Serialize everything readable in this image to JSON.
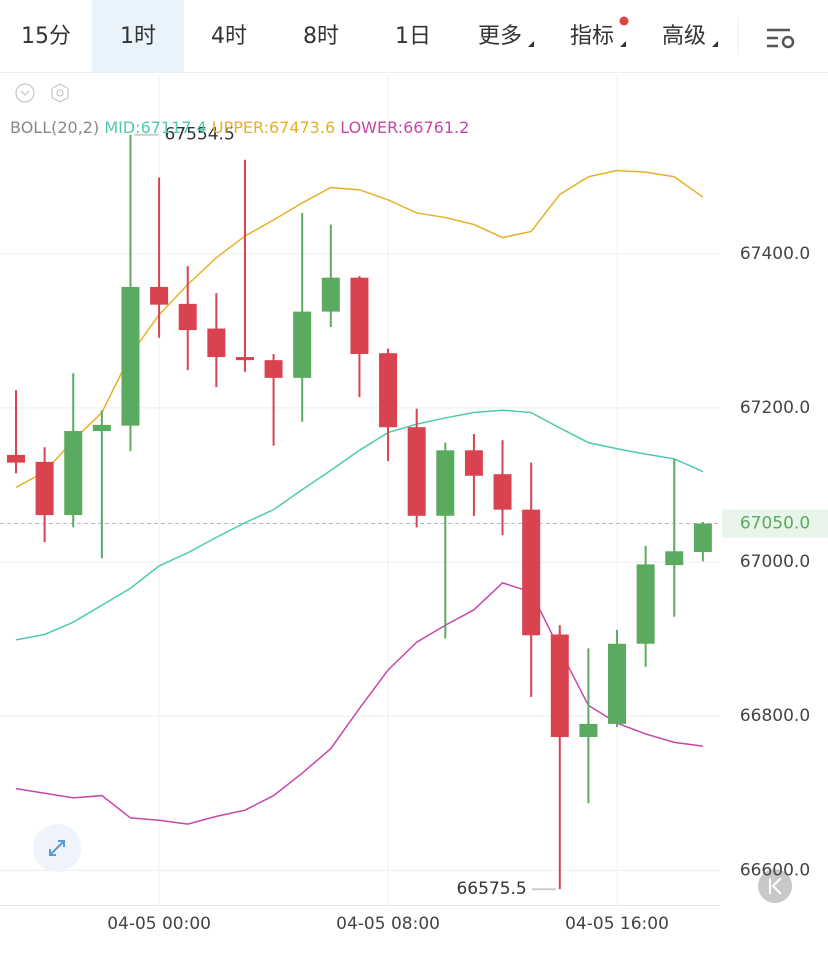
{
  "header": {
    "tabs": [
      "15分",
      "1时",
      "4时",
      "8时",
      "1日",
      "更多",
      "指标",
      "高级"
    ],
    "active": 1
  },
  "chart_data": {
    "type": "candlestick",
    "indicator": "BOLL(20,2)",
    "categories": [
      null,
      null,
      null,
      null,
      null,
      "04-05 00:00",
      null,
      null,
      null,
      null,
      null,
      null,
      null,
      "04-05 08:00",
      null,
      null,
      null,
      null,
      null,
      null,
      null,
      "04-05 16:00",
      null,
      null,
      null
    ],
    "open": [
      67139,
      67130,
      67061,
      67170,
      67177,
      67357,
      67335,
      67303,
      67266,
      67262,
      67239,
      67325,
      67369,
      67271,
      67175,
      67060,
      67145,
      67114,
      67068,
      66906,
      66773,
      66790,
      66894,
      66996,
      67013
    ],
    "high": [
      67223,
      67149,
      67245,
      67197,
      67554.5,
      67499,
      67384,
      67349,
      67522,
      67270,
      67453,
      67438,
      67371,
      67277,
      67199,
      67155,
      67166,
      67158,
      67129,
      66918,
      66888,
      66912,
      67021,
      67134,
      67052
    ],
    "low": [
      67115,
      67026,
      67045,
      67005,
      67144,
      67291,
      67249,
      67227,
      67247,
      67151,
      67182,
      67305,
      67214,
      67131,
      67045,
      66901,
      67060,
      67035,
      66825,
      66575.5,
      66687,
      66786,
      66864,
      66929,
      67001
    ],
    "close": [
      67129,
      67061,
      67170,
      67178,
      67357,
      67334,
      67301,
      67266,
      67262,
      67239,
      67325,
      67369,
      67270,
      67175,
      67060,
      67145,
      67112,
      67068,
      66905,
      66773,
      66790,
      66894,
      66997,
      67014,
      67050
    ],
    "up_color": "#5aab5f",
    "down_color": "#d8434f",
    "max_label": "67554.5",
    "min_label": "66575.5",
    "series": [
      {
        "name": "MID:67117.4",
        "color": "#4fcab0",
        "values": [
          66899,
          66906,
          66922,
          66944,
          66966,
          66995,
          67012,
          67032,
          67051,
          67068,
          67094,
          67119,
          67145,
          67168,
          67179,
          67187,
          67194,
          67197,
          67194,
          67174,
          67155,
          67147,
          67140,
          67134,
          67117.4
        ]
      },
      {
        "name": "UPPER:67473.6",
        "color": "#e7b02a",
        "values": [
          67097,
          67117,
          67158,
          67194,
          67269,
          67321,
          67360,
          67395,
          67423,
          67444,
          67466,
          67486,
          67483,
          67470,
          67453,
          67447,
          67438,
          67421,
          67429,
          67477,
          67500,
          67508,
          67506,
          67500,
          67473.6
        ]
      },
      {
        "name": "LOWER:66761.2",
        "color": "#c747a8",
        "values": [
          66706,
          66700,
          66694,
          66697,
          66668,
          66665,
          66660,
          66670,
          66678,
          66697,
          66726,
          66758,
          66810,
          66860,
          66896,
          66918,
          66938,
          66973,
          66961,
          66886,
          66814,
          66791,
          66777,
          66766,
          66761.2
        ]
      }
    ],
    "last_price": {
      "value": 67050,
      "label": "67050.0"
    },
    "ylim": [
      66555,
      67632
    ],
    "yticks": [
      {
        "value": 66600,
        "label": "66600.0"
      },
      {
        "value": 66800,
        "label": "66800.0"
      },
      {
        "value": 67000,
        "label": "67000.0"
      },
      {
        "value": 67200,
        "label": "67200.0"
      },
      {
        "value": 67400,
        "label": "67400.0"
      }
    ],
    "grid": true
  }
}
